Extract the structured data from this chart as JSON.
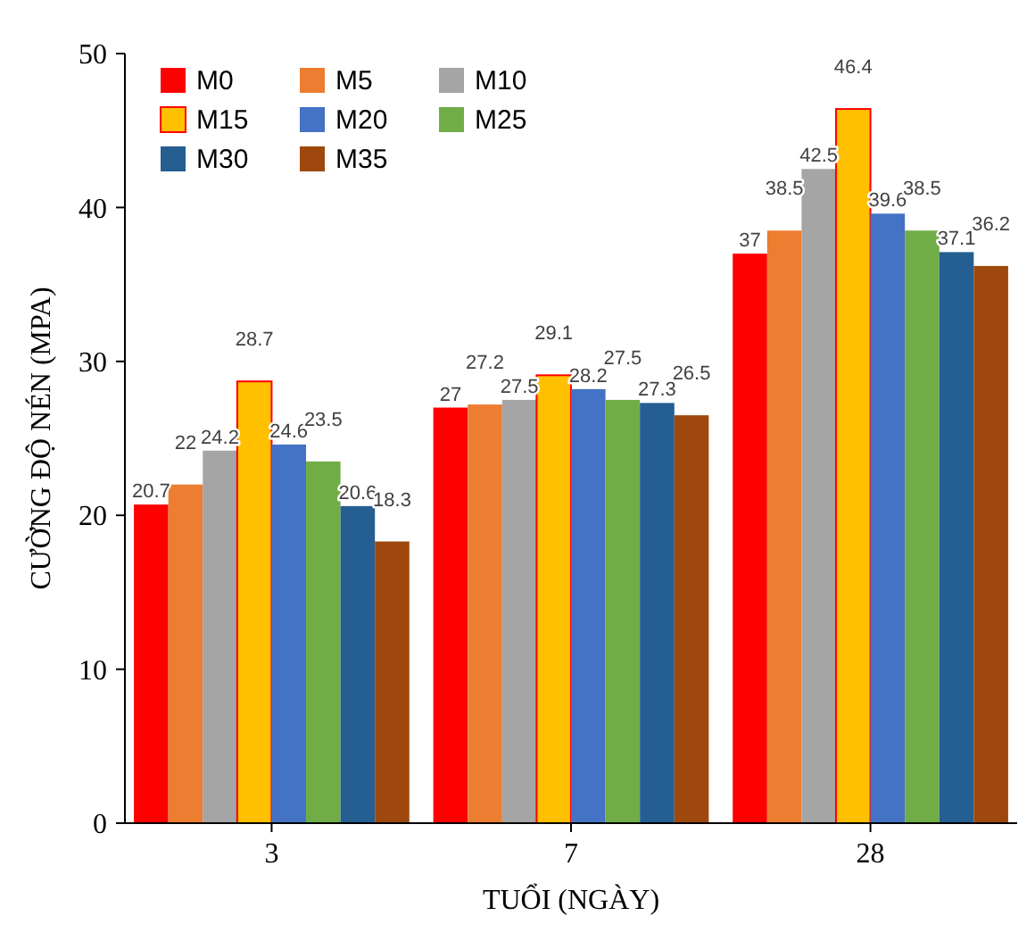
{
  "chart_data": {
    "type": "bar",
    "xlabel": "TUỔI (NGÀY)",
    "ylabel": "CƯỜNG ĐỘ NÉN (MPA)",
    "categories": [
      "3",
      "7",
      "28"
    ],
    "series": [
      {
        "name": "M0",
        "color": "#ff0000",
        "values": [
          20.7,
          27,
          37
        ]
      },
      {
        "name": "M5",
        "color": "#ed7d31",
        "values": [
          22,
          27.2,
          38.5
        ]
      },
      {
        "name": "M10",
        "color": "#a5a5a5",
        "values": [
          24.2,
          27.5,
          42.5
        ]
      },
      {
        "name": "M15",
        "color": "#ffc000",
        "values": [
          28.7,
          29.1,
          46.4
        ]
      },
      {
        "name": "M20",
        "color": "#4472c4",
        "values": [
          24.6,
          28.2,
          39.6
        ]
      },
      {
        "name": "M25",
        "color": "#70ad47",
        "values": [
          23.5,
          27.5,
          38.5
        ]
      },
      {
        "name": "M30",
        "color": "#255e91",
        "values": [
          20.6,
          27.3,
          37.1
        ]
      },
      {
        "name": "M35",
        "color": "#9e480e",
        "values": [
          18.3,
          26.5,
          36.2
        ]
      }
    ],
    "ylim": [
      0,
      50
    ],
    "yticks": [
      0,
      10,
      20,
      30,
      40,
      50
    ],
    "grid": false,
    "legend": "top left",
    "data_labels": true
  }
}
